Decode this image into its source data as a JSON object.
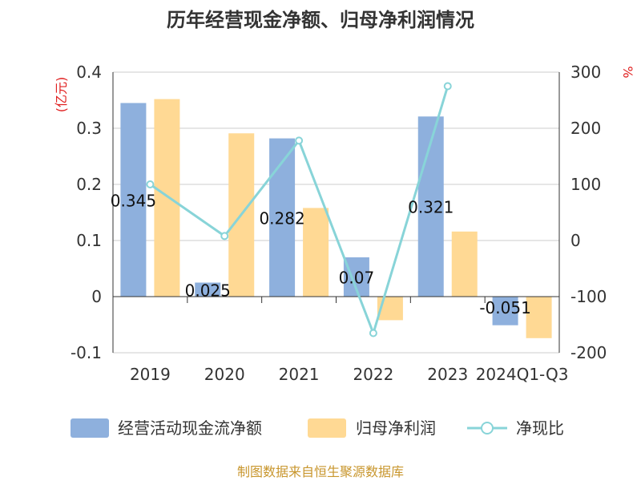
{
  "chart_data": {
    "type": "bar",
    "title": "历年经营现金净额、归母净利润情况",
    "categories": [
      "2019",
      "2020",
      "2021",
      "2022",
      "2023",
      "2024Q1-Q3"
    ],
    "series": [
      {
        "name": "经营活动现金流净额",
        "type": "bar",
        "axis": "left",
        "values": [
          0.345,
          0.025,
          0.282,
          0.07,
          0.321,
          -0.051
        ],
        "data_labels": [
          "0.345",
          "0.025",
          "0.282",
          "0.07",
          "0.321",
          "-0.051"
        ],
        "color": "#8eb0dd"
      },
      {
        "name": "归母净利润",
        "type": "bar",
        "axis": "left",
        "values": [
          0.352,
          0.291,
          0.158,
          -0.042,
          0.116,
          -0.074
        ],
        "color": "#ffd994"
      },
      {
        "name": "净现比",
        "type": "line",
        "axis": "right",
        "values": [
          100,
          8,
          178,
          -165,
          275,
          null
        ],
        "color": "#88d4d8"
      }
    ],
    "left_axis": {
      "unit": "(亿元)",
      "ylim": [
        -0.1,
        0.4
      ],
      "ticks": [
        "-0.1",
        "0",
        "0.1",
        "0.2",
        "0.3",
        "0.4"
      ]
    },
    "right_axis": {
      "unit": "%",
      "ylim": [
        -200,
        300
      ],
      "ticks": [
        "-200",
        "-100",
        "0",
        "100",
        "200",
        "300"
      ]
    },
    "grid": true,
    "legend_position": "bottom"
  },
  "source": "制图数据来自恒生聚源数据库"
}
